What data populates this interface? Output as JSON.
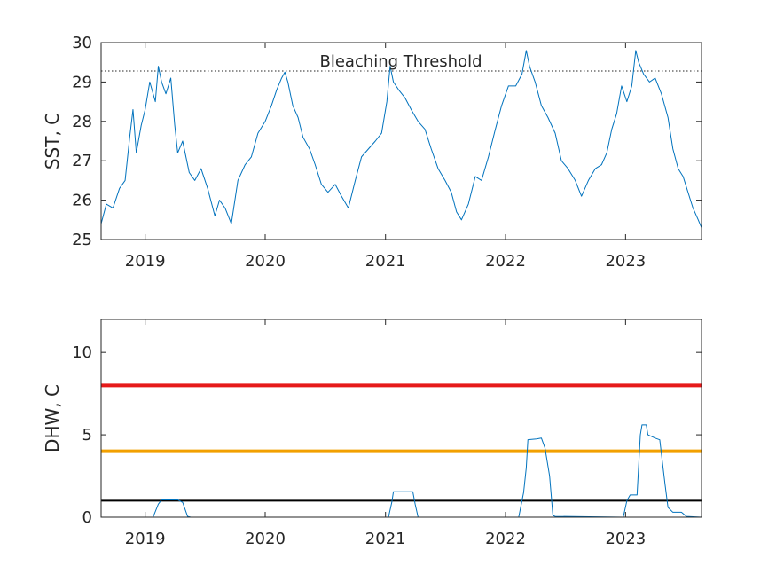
{
  "colors": {
    "series": "#0072BD",
    "severe": "#E61A1A",
    "moderate": "#F2A000",
    "watch": "#000000",
    "axis": "#262626",
    "background": "#FFFFFF"
  },
  "chart_data": [
    {
      "type": "line",
      "ylabel": "SST, C",
      "xlabel": "",
      "title": "",
      "xlim": [
        "2018-08-20",
        "2023-08-20"
      ],
      "ylim": [
        25,
        30
      ],
      "x_ticks": [
        "2019",
        "2020",
        "2021",
        "2022",
        "2023"
      ],
      "y_ticks": [
        25,
        26,
        27,
        28,
        29,
        30
      ],
      "grid": false,
      "reference_line": {
        "value": 29.28,
        "style": "dotted",
        "label": "Bleaching Threshold"
      },
      "series": [
        {
          "points": [
            [
              "2018-08-20",
              25.4
            ],
            [
              "2018-09-05",
              25.9
            ],
            [
              "2018-09-25",
              25.8
            ],
            [
              "2018-10-15",
              26.3
            ],
            [
              "2018-11-01",
              26.5
            ],
            [
              "2018-11-15",
              27.6
            ],
            [
              "2018-11-25",
              28.3
            ],
            [
              "2018-12-05",
              27.2
            ],
            [
              "2018-12-20",
              27.9
            ],
            [
              "2019-01-01",
              28.3
            ],
            [
              "2019-01-15",
              29.0
            ],
            [
              "2019-02-01",
              28.5
            ],
            [
              "2019-02-10",
              29.4
            ],
            [
              "2019-02-20",
              29.0
            ],
            [
              "2019-03-05",
              28.7
            ],
            [
              "2019-03-20",
              29.1
            ],
            [
              "2019-04-01",
              27.9
            ],
            [
              "2019-04-10",
              27.2
            ],
            [
              "2019-04-25",
              27.5
            ],
            [
              "2019-05-15",
              26.7
            ],
            [
              "2019-06-01",
              26.5
            ],
            [
              "2019-06-20",
              26.8
            ],
            [
              "2019-07-10",
              26.3
            ],
            [
              "2019-08-01",
              25.6
            ],
            [
              "2019-08-15",
              26.0
            ],
            [
              "2019-09-01",
              25.8
            ],
            [
              "2019-09-20",
              25.4
            ],
            [
              "2019-10-10",
              26.5
            ],
            [
              "2019-11-01",
              26.9
            ],
            [
              "2019-11-20",
              27.1
            ],
            [
              "2019-12-10",
              27.7
            ],
            [
              "2020-01-01",
              28.0
            ],
            [
              "2020-01-20",
              28.4
            ],
            [
              "2020-02-05",
              28.8
            ],
            [
              "2020-02-20",
              29.1
            ],
            [
              "2020-03-01",
              29.25
            ],
            [
              "2020-03-10",
              29.0
            ],
            [
              "2020-03-25",
              28.4
            ],
            [
              "2020-04-10",
              28.1
            ],
            [
              "2020-04-25",
              27.6
            ],
            [
              "2020-05-15",
              27.3
            ],
            [
              "2020-06-01",
              26.9
            ],
            [
              "2020-06-20",
              26.4
            ],
            [
              "2020-07-10",
              26.2
            ],
            [
              "2020-08-01",
              26.4
            ],
            [
              "2020-08-20",
              26.1
            ],
            [
              "2020-09-10",
              25.8
            ],
            [
              "2020-10-01",
              26.5
            ],
            [
              "2020-10-20",
              27.1
            ],
            [
              "2020-11-10",
              27.3
            ],
            [
              "2020-12-01",
              27.5
            ],
            [
              "2020-12-20",
              27.7
            ],
            [
              "2021-01-05",
              28.5
            ],
            [
              "2021-01-15",
              29.4
            ],
            [
              "2021-01-25",
              29.0
            ],
            [
              "2021-02-10",
              28.8
            ],
            [
              "2021-03-01",
              28.6
            ],
            [
              "2021-03-20",
              28.3
            ],
            [
              "2021-04-10",
              28.0
            ],
            [
              "2021-05-01",
              27.8
            ],
            [
              "2021-05-20",
              27.3
            ],
            [
              "2021-06-10",
              26.8
            ],
            [
              "2021-07-01",
              26.5
            ],
            [
              "2021-07-20",
              26.2
            ],
            [
              "2021-08-05",
              25.7
            ],
            [
              "2021-08-20",
              25.5
            ],
            [
              "2021-09-10",
              25.9
            ],
            [
              "2021-10-01",
              26.6
            ],
            [
              "2021-10-20",
              26.5
            ],
            [
              "2021-11-10",
              27.1
            ],
            [
              "2021-12-01",
              27.8
            ],
            [
              "2021-12-20",
              28.4
            ],
            [
              "2022-01-10",
              28.9
            ],
            [
              "2022-02-01",
              28.9
            ],
            [
              "2022-02-20",
              29.2
            ],
            [
              "2022-03-05",
              29.8
            ],
            [
              "2022-03-15",
              29.4
            ],
            [
              "2022-04-01",
              29.0
            ],
            [
              "2022-04-20",
              28.4
            ],
            [
              "2022-05-10",
              28.1
            ],
            [
              "2022-06-01",
              27.7
            ],
            [
              "2022-06-20",
              27.0
            ],
            [
              "2022-07-10",
              26.8
            ],
            [
              "2022-08-01",
              26.5
            ],
            [
              "2022-08-20",
              26.1
            ],
            [
              "2022-09-10",
              26.5
            ],
            [
              "2022-10-01",
              26.8
            ],
            [
              "2022-10-20",
              26.9
            ],
            [
              "2022-11-05",
              27.2
            ],
            [
              "2022-11-20",
              27.8
            ],
            [
              "2022-12-05",
              28.2
            ],
            [
              "2022-12-20",
              28.9
            ],
            [
              "2023-01-05",
              28.5
            ],
            [
              "2023-01-20",
              28.9
            ],
            [
              "2023-02-01",
              29.8
            ],
            [
              "2023-02-10",
              29.5
            ],
            [
              "2023-02-25",
              29.2
            ],
            [
              "2023-03-15",
              29.0
            ],
            [
              "2023-04-01",
              29.1
            ],
            [
              "2023-04-20",
              28.7
            ],
            [
              "2023-05-10",
              28.1
            ],
            [
              "2023-05-25",
              27.3
            ],
            [
              "2023-06-10",
              26.8
            ],
            [
              "2023-06-25",
              26.6
            ],
            [
              "2023-07-10",
              26.2
            ],
            [
              "2023-07-25",
              25.8
            ],
            [
              "2023-08-10",
              25.5
            ],
            [
              "2023-08-20",
              25.3
            ]
          ]
        }
      ]
    },
    {
      "type": "line",
      "ylabel": "DHW, C",
      "xlabel": "",
      "title": "",
      "xlim": [
        "2018-08-20",
        "2023-08-20"
      ],
      "ylim": [
        0,
        12
      ],
      "x_ticks": [
        "2019",
        "2020",
        "2021",
        "2022",
        "2023"
      ],
      "y_ticks": [
        0,
        5,
        10
      ],
      "grid": false,
      "reference_lines": [
        {
          "value": 8,
          "color": "#E61A1A"
        },
        {
          "value": 4,
          "color": "#F2A000"
        },
        {
          "value": 1,
          "color": "#000000"
        }
      ],
      "series": [
        {
          "points": [
            [
              "2018-08-20",
              0
            ],
            [
              "2019-01-25",
              0
            ],
            [
              "2019-02-10",
              0.8
            ],
            [
              "2019-02-20",
              1.05
            ],
            [
              "2019-04-10",
              1.05
            ],
            [
              "2019-04-25",
              0.9
            ],
            [
              "2019-05-10",
              0.05
            ],
            [
              "2019-05-20",
              0
            ],
            [
              "2021-01-10",
              0
            ],
            [
              "2021-01-20",
              0.9
            ],
            [
              "2021-01-25",
              1.55
            ],
            [
              "2021-03-25",
              1.55
            ],
            [
              "2021-04-01",
              0.8
            ],
            [
              "2021-04-10",
              0
            ],
            [
              "2022-02-10",
              0
            ],
            [
              "2022-02-25",
              1.5
            ],
            [
              "2022-03-05",
              3.0
            ],
            [
              "2022-03-10",
              4.7
            ],
            [
              "2022-04-05",
              4.75
            ],
            [
              "2022-04-20",
              4.8
            ],
            [
              "2022-05-01",
              4.2
            ],
            [
              "2022-05-15",
              2.5
            ],
            [
              "2022-05-25",
              0.1
            ],
            [
              "2022-06-01",
              0.05
            ],
            [
              "2022-12-25",
              0
            ],
            [
              "2023-01-05",
              1.0
            ],
            [
              "2023-01-15",
              1.35
            ],
            [
              "2023-02-05",
              1.35
            ],
            [
              "2023-02-15",
              5.0
            ],
            [
              "2023-02-20",
              5.6
            ],
            [
              "2023-03-05",
              5.6
            ],
            [
              "2023-03-10",
              5.0
            ],
            [
              "2023-04-01",
              4.8
            ],
            [
              "2023-04-15",
              4.7
            ],
            [
              "2023-05-01",
              2.0
            ],
            [
              "2023-05-10",
              0.6
            ],
            [
              "2023-05-25",
              0.3
            ],
            [
              "2023-06-20",
              0.3
            ],
            [
              "2023-07-05",
              0.05
            ],
            [
              "2023-08-20",
              0
            ]
          ]
        }
      ]
    }
  ]
}
